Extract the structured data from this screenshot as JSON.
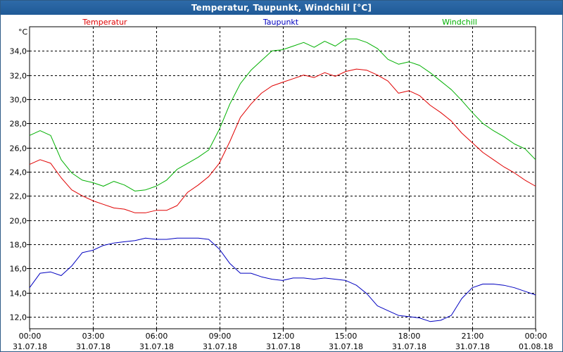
{
  "window": {
    "title": "Temperatur, Taupunkt, Windchill [°C]"
  },
  "chart_data": {
    "type": "line",
    "title": "Temperatur, Taupunkt, Windchill [°C]",
    "ylabel": "°C",
    "ylim": [
      11,
      36
    ],
    "xlim": [
      0,
      24
    ],
    "grid": true,
    "legend_position": "top",
    "x_ticks": [
      {
        "time": "00:00",
        "date": "31.07.18"
      },
      {
        "time": "03:00",
        "date": "31.07.18"
      },
      {
        "time": "06:00",
        "date": "31.07.18"
      },
      {
        "time": "09:00",
        "date": "31.07.18"
      },
      {
        "time": "12:00",
        "date": "31.07.18"
      },
      {
        "time": "15:00",
        "date": "31.07.18"
      },
      {
        "time": "18:00",
        "date": "31.07.18"
      },
      {
        "time": "21:00",
        "date": "31.07.18"
      },
      {
        "time": "00:00",
        "date": "01.08.18"
      }
    ],
    "y_ticks": [
      "12,0",
      "14,0",
      "16,0",
      "18,0",
      "20,0",
      "22,0",
      "24,0",
      "26,0",
      "28,0",
      "30,0",
      "32,0",
      "34,0"
    ],
    "y_tick_values": [
      12,
      14,
      16,
      18,
      20,
      22,
      24,
      26,
      28,
      30,
      32,
      34
    ],
    "x_hours": [
      0,
      0.5,
      1,
      1.5,
      2,
      2.5,
      3,
      3.5,
      4,
      4.5,
      5,
      5.5,
      6,
      6.5,
      7,
      7.5,
      8,
      8.5,
      9,
      9.5,
      10,
      10.5,
      11,
      11.5,
      12,
      12.5,
      13,
      13.5,
      14,
      14.5,
      15,
      15.5,
      16,
      16.5,
      17,
      17.5,
      18,
      18.5,
      19,
      19.5,
      20,
      20.5,
      21,
      21.5,
      22,
      22.5,
      23,
      23.5,
      24
    ],
    "series": [
      {
        "name": "Temperatur",
        "color": "#e00000",
        "values": [
          24.6,
          25.0,
          24.7,
          23.5,
          22.5,
          22.0,
          21.6,
          21.3,
          21.0,
          20.9,
          20.6,
          20.6,
          20.8,
          20.8,
          21.2,
          22.3,
          22.9,
          23.6,
          24.7,
          26.5,
          28.5,
          29.6,
          30.5,
          31.1,
          31.4,
          31.7,
          32.0,
          31.8,
          32.2,
          31.9,
          32.3,
          32.5,
          32.4,
          32.0,
          31.5,
          30.5,
          30.7,
          30.3,
          29.5,
          28.9,
          28.2,
          27.2,
          26.4,
          25.6,
          25.0,
          24.4,
          23.9,
          23.3,
          22.8
        ]
      },
      {
        "name": "Taupunkt",
        "color": "#0000c0",
        "values": [
          14.4,
          15.6,
          15.7,
          15.4,
          16.2,
          17.3,
          17.5,
          17.9,
          18.1,
          18.2,
          18.3,
          18.5,
          18.4,
          18.4,
          18.5,
          18.5,
          18.5,
          18.4,
          17.6,
          16.4,
          15.6,
          15.6,
          15.3,
          15.1,
          15.0,
          15.2,
          15.2,
          15.1,
          15.2,
          15.1,
          15.0,
          14.6,
          13.9,
          12.9,
          12.5,
          12.1,
          12.0,
          11.9,
          11.6,
          11.7,
          12.1,
          13.5,
          14.4,
          14.7,
          14.7,
          14.6,
          14.4,
          14.1,
          13.8
        ]
      },
      {
        "name": "Windchill",
        "color": "#00b000",
        "values": [
          27.0,
          27.4,
          27.0,
          25.0,
          23.9,
          23.3,
          23.1,
          22.8,
          23.2,
          22.9,
          22.4,
          22.5,
          22.8,
          23.3,
          24.2,
          24.7,
          25.2,
          25.8,
          27.5,
          29.6,
          31.3,
          32.4,
          33.2,
          34.0,
          34.1,
          34.4,
          34.7,
          34.3,
          34.8,
          34.4,
          35.0,
          35.0,
          34.7,
          34.2,
          33.3,
          32.9,
          33.1,
          32.8,
          32.2,
          31.5,
          30.8,
          29.9,
          28.9,
          28.0,
          27.4,
          26.9,
          26.3,
          25.9,
          25.0
        ]
      }
    ]
  }
}
